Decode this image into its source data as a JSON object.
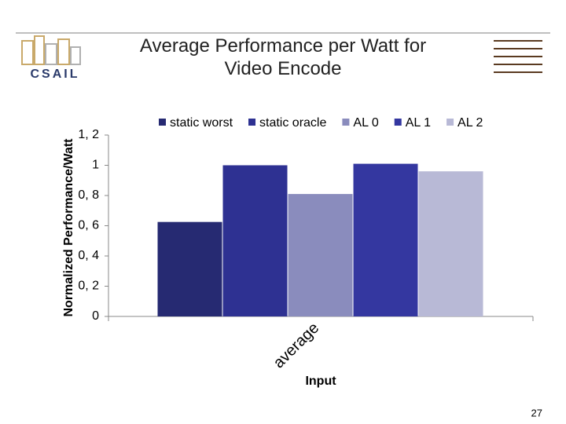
{
  "chart_data": {
    "type": "bar",
    "title": "Average Performance per Watt for Video Encode",
    "logo_text": "CSAIL",
    "y_label": "Normalized Performance/Watt",
    "x_label": "Input",
    "categories": [
      "average"
    ],
    "series": [
      {
        "name": "static worst",
        "color": "#262a72",
        "values": [
          0.625
        ]
      },
      {
        "name": "static oracle",
        "color": "#2e3192",
        "values": [
          1.0
        ]
      },
      {
        "name": "AL 0",
        "color": "#8a8cbd",
        "values": [
          0.81
        ]
      },
      {
        "name": "AL 1",
        "color": "#3437a0",
        "values": [
          1.01
        ]
      },
      {
        "name": "AL 2",
        "color": "#b8b9d6",
        "values": [
          0.96
        ]
      }
    ],
    "ylim": [
      0,
      1.2
    ],
    "yticks": [
      0,
      {
        "value": 0.2,
        "label": "0, 2"
      },
      {
        "value": 0.4,
        "label": "0, 4"
      },
      {
        "value": 0.6,
        "label": "0, 6"
      },
      {
        "value": 0.8,
        "label": "0, 8"
      },
      1,
      {
        "value": 1.2,
        "label": "1, 2"
      }
    ],
    "grid": false,
    "legend": "top",
    "page_number": 27
  }
}
